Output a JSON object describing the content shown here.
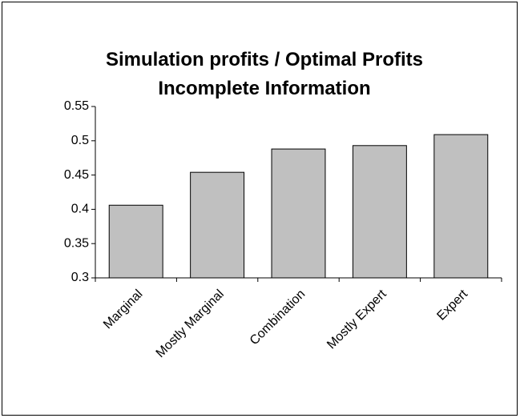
{
  "chart_data": {
    "type": "bar",
    "title": [
      "Simulation profits / Optimal Profits",
      "Incomplete Information"
    ],
    "categories": [
      "Marginal",
      "Mostly Marginal",
      "Combination",
      "Mostly Expert",
      "Expert"
    ],
    "values": [
      0.406,
      0.454,
      0.488,
      0.493,
      0.509
    ],
    "color": "#c0c0c0",
    "ylim": [
      0.3,
      0.55
    ],
    "yticks": [
      0.3,
      0.35,
      0.4,
      0.45,
      0.5,
      0.55
    ],
    "grid": false
  }
}
